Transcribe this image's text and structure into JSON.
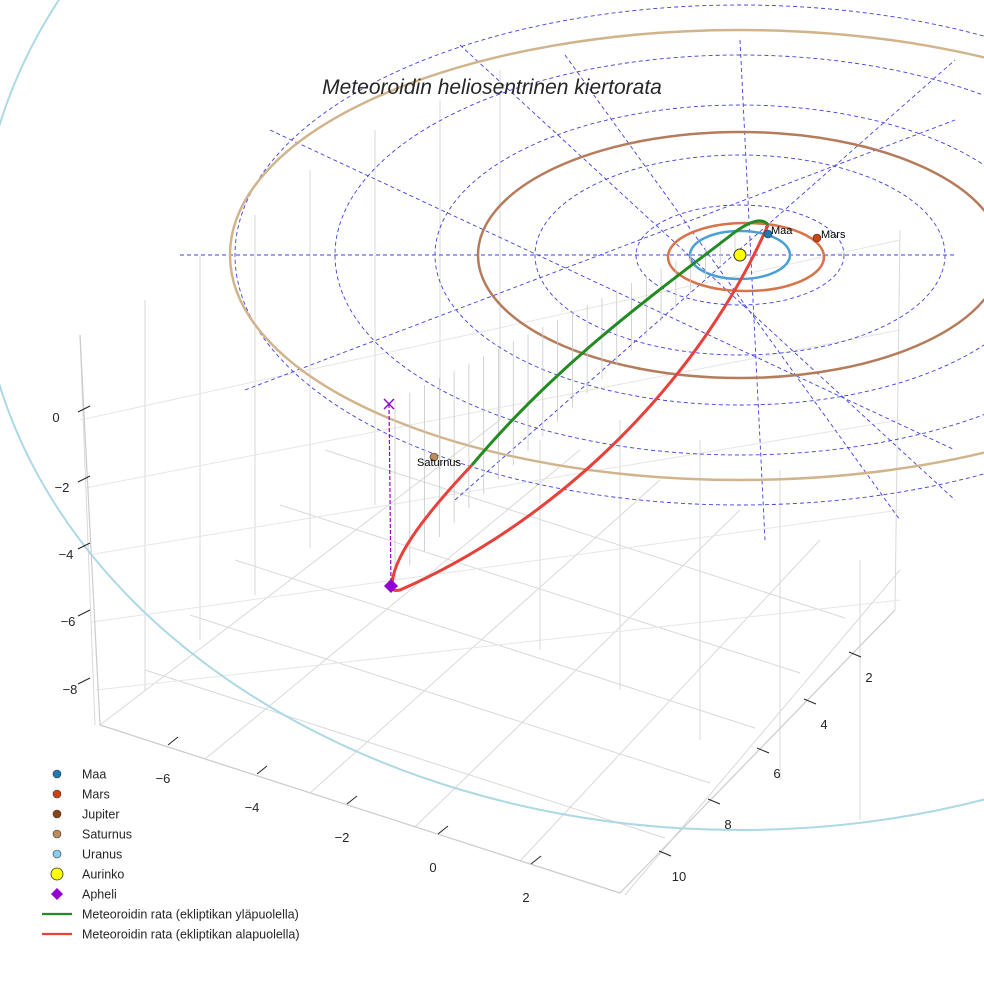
{
  "chart_data": {
    "type": "3d-line",
    "title": "Meteoroidin heliosentrinen kiertorata",
    "z_ticks": [
      "0",
      "−2",
      "−4",
      "−6",
      "−8"
    ],
    "x_ticks": [
      "−6",
      "−4",
      "−2",
      "0",
      "2"
    ],
    "y_ticks": [
      "2",
      "4",
      "6",
      "8",
      "10"
    ],
    "planets": [
      {
        "name": "Maa",
        "label": "Maa",
        "orbit_radius_au": 1.0,
        "color": "#1f77b4"
      },
      {
        "name": "Mars",
        "label": "Mars",
        "orbit_radius_au": 1.52,
        "color": "#cc4411"
      },
      {
        "name": "Jupiter",
        "label": "",
        "orbit_radius_au": 5.2,
        "color": "#8b4513"
      },
      {
        "name": "Saturnus",
        "label": "Saturnus",
        "orbit_radius_au": 9.5,
        "color": "#c08a5a"
      },
      {
        "name": "Uranus",
        "label": "",
        "orbit_radius_au": 19.2,
        "color": "#87ceeb"
      }
    ],
    "sun": {
      "name": "Aurinko",
      "color": "#ffff00"
    },
    "aphelion": {
      "name": "Apheli",
      "z": -5.0,
      "color": "#9400d3"
    },
    "series": [
      {
        "name": "Meteoroidin rata (ekliptikan yläpuolella)",
        "color": "#228b22"
      },
      {
        "name": "Meteoroidin rata (ekliptikan alapuolella)",
        "color": "#e8413c"
      }
    ],
    "grid": true
  },
  "legend": [
    {
      "label": "Maa",
      "symbol": "dot",
      "color": "#1f77b4"
    },
    {
      "label": "Mars",
      "symbol": "dot",
      "color": "#cc4411"
    },
    {
      "label": "Jupiter",
      "symbol": "dot",
      "color": "#8b4513"
    },
    {
      "label": "Saturnus",
      "symbol": "dot",
      "color": "#c08a5a"
    },
    {
      "label": "Uranus",
      "symbol": "dot",
      "color": "#87ceeb"
    },
    {
      "label": "Aurinko",
      "symbol": "bigdot",
      "color": "#ffff00"
    },
    {
      "label": "Apheli",
      "symbol": "diamond",
      "color": "#9400d3"
    },
    {
      "label": "Meteoroidin rata (ekliptikan yläpuolella)",
      "symbol": "line",
      "color": "#228b22"
    },
    {
      "label": "Meteoroidin rata (ekliptikan alapuolella)",
      "symbol": "line",
      "color": "#e8413c"
    }
  ]
}
